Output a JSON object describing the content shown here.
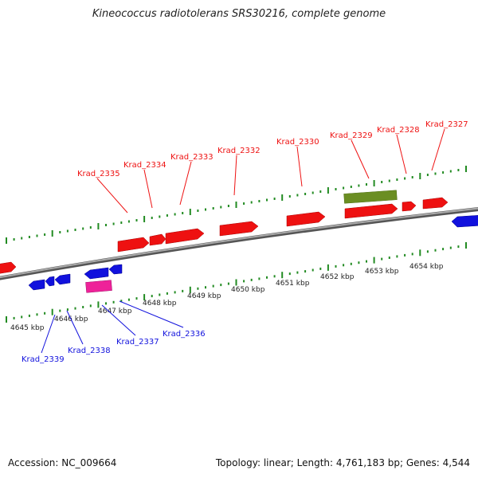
{
  "title": "Kineococcus radiotolerans SRS30216, complete genome",
  "footer": {
    "accession": "Accession: NC_009664",
    "summary": "Topology: linear; Length: 4,761,183 bp; Genes: 4,544"
  },
  "colors": {
    "forward_gene": "#ee1111",
    "reverse_gene": "#1111dd",
    "rna_gene": "#ee2299",
    "other_feature": "#6b8e23",
    "ticks": "#228b22",
    "backbone": "#8a8a8a"
  },
  "scale_ticks": [
    {
      "label": "4645 kbp"
    },
    {
      "label": "4646 kbp"
    },
    {
      "label": "4647 kbp"
    },
    {
      "label": "4648 kbp"
    },
    {
      "label": "4649 kbp"
    },
    {
      "label": "4650 kbp"
    },
    {
      "label": "4651 kbp"
    },
    {
      "label": "4652 kbp"
    },
    {
      "label": "4653 kbp"
    },
    {
      "label": "4654 kbp"
    }
  ],
  "forward_labels": [
    "Krad_2335",
    "Krad_2334",
    "Krad_2333",
    "Krad_2332",
    "Krad_2330",
    "Krad_2329",
    "Krad_2328",
    "Krad_2327"
  ],
  "reverse_labels": [
    "Krad_2339",
    "Krad_2338",
    "Krad_2337",
    "Krad_2336"
  ]
}
